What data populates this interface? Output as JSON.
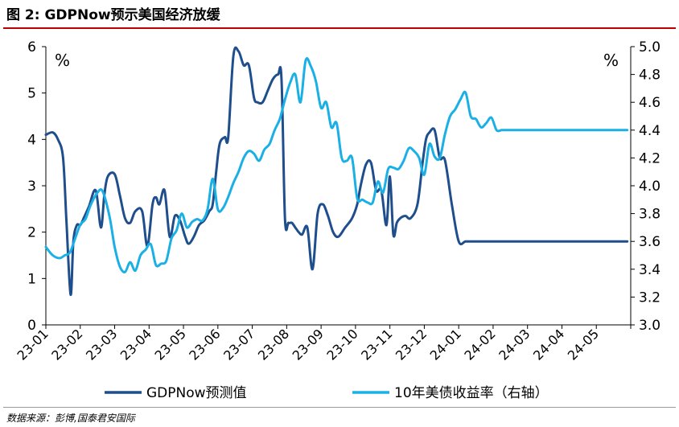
{
  "title": "图 2:  GDPNow预示美国经济放缓",
  "source": "数据来源：彭博,国泰君安国际",
  "chart_data": {
    "type": "line",
    "left_axis": {
      "ticks": [
        0,
        1,
        2,
        3,
        4,
        5,
        6
      ],
      "min": 0,
      "max": 6,
      "unit": "%"
    },
    "right_axis": {
      "ticks": [
        3.0,
        3.2,
        3.4,
        3.6,
        3.8,
        4.0,
        4.2,
        4.4,
        4.6,
        4.8,
        5.0
      ],
      "min": 3.0,
      "max": 5.0,
      "unit": "%"
    },
    "x_labels": [
      "23-01",
      "23-02",
      "23-03",
      "23-04",
      "23-05",
      "23-06",
      "23-07",
      "23-08",
      "23-09",
      "23-10",
      "23-11",
      "23-12",
      "24-01",
      "24-02",
      "24-03",
      "24-04",
      "24-05"
    ],
    "grid": false,
    "legend_position": "bottom",
    "series": [
      {
        "name": "GDPNow预测值",
        "axis": "left",
        "color": "#1f4e8c",
        "x": [
          0.0,
          0.2,
          0.35,
          0.5,
          0.6,
          0.72,
          0.8,
          0.9,
          1.0,
          1.1,
          1.25,
          1.45,
          1.6,
          1.7,
          1.8,
          2.0,
          2.15,
          2.3,
          2.45,
          2.6,
          2.8,
          2.95,
          3.1,
          3.2,
          3.3,
          3.45,
          3.6,
          3.75,
          3.9,
          4.05,
          4.15,
          4.3,
          4.45,
          4.6,
          4.75,
          4.85,
          4.95,
          5.05,
          5.2,
          5.3,
          5.45,
          5.6,
          5.75,
          5.9,
          6.05,
          6.15,
          6.3,
          6.45,
          6.6,
          6.75,
          6.85,
          6.95,
          7.05,
          7.15,
          7.25,
          7.35,
          7.45,
          7.6,
          7.75,
          7.9,
          8.05,
          8.2,
          8.35,
          8.5,
          8.7,
          8.9,
          9.05,
          9.15,
          9.3,
          9.45,
          9.6,
          9.75,
          9.9,
          10.0,
          10.1,
          10.2,
          10.3,
          10.45,
          10.6,
          10.8,
          10.95,
          11.05,
          11.15,
          11.3,
          11.45,
          11.6,
          11.8,
          12.0,
          12.2,
          12.4,
          12.6,
          12.75,
          12.9,
          13.05,
          13.2,
          13.3,
          13.45,
          13.6,
          13.75,
          13.9,
          14.05,
          14.15,
          14.3,
          14.45,
          14.6,
          14.75,
          14.95,
          15.15,
          15.35,
          15.5,
          15.6,
          15.75,
          15.9,
          16.05,
          16.2,
          16.35,
          16.5,
          16.65,
          16.8,
          16.9
        ],
        "values": [
          4.1,
          4.15,
          4.0,
          3.6,
          2.2,
          0.65,
          1.8,
          2.15,
          2.15,
          2.3,
          2.55,
          2.9,
          2.1,
          2.8,
          3.2,
          3.25,
          2.8,
          2.3,
          2.2,
          2.45,
          2.45,
          1.7,
          2.6,
          2.75,
          2.6,
          2.9,
          1.9,
          2.35,
          2.25,
          1.9,
          1.75,
          1.9,
          2.15,
          2.25,
          2.45,
          2.6,
          3.3,
          3.9,
          4.05,
          4.05,
          5.8,
          5.9,
          5.6,
          5.6,
          4.9,
          4.8,
          4.8,
          5.05,
          5.3,
          5.4,
          5.3,
          2.3,
          2.2,
          2.2,
          2.1,
          2.0,
          1.95,
          2.1,
          1.2,
          2.4,
          2.6,
          2.35,
          2.0,
          1.9,
          2.1,
          2.3,
          2.6,
          3.0,
          3.45,
          3.5,
          2.9,
          2.9,
          2.15,
          3.2,
          1.95,
          2.2,
          2.3,
          2.35,
          2.3,
          2.6,
          3.5,
          4.0,
          4.15,
          4.2,
          3.6,
          3.55,
          2.6,
          1.8,
          1.8,
          1.8,
          1.8,
          1.8,
          1.8,
          1.8,
          1.8,
          1.8,
          1.8,
          1.8,
          1.8,
          1.8,
          1.8,
          1.8,
          1.8,
          1.8,
          1.8,
          1.8,
          1.8,
          1.8,
          1.8,
          1.8,
          1.8,
          1.8,
          1.8,
          1.8,
          1.8,
          1.8,
          1.8,
          1.8,
          1.8,
          1.8
        ]
      },
      {
        "name": "10年美债收益率（右轴）",
        "axis": "right",
        "color": "#1ab0e6",
        "x": [
          0.0,
          0.2,
          0.4,
          0.55,
          0.7,
          0.85,
          1.0,
          1.15,
          1.3,
          1.5,
          1.65,
          1.85,
          2.0,
          2.15,
          2.3,
          2.45,
          2.6,
          2.75,
          2.9,
          3.05,
          3.2,
          3.35,
          3.5,
          3.65,
          3.8,
          3.95,
          4.1,
          4.25,
          4.4,
          4.55,
          4.7,
          4.85,
          5.0,
          5.15,
          5.3,
          5.45,
          5.6,
          5.75,
          5.9,
          6.05,
          6.2,
          6.35,
          6.5,
          6.65,
          6.8,
          6.95,
          7.1,
          7.25,
          7.4,
          7.55,
          7.7,
          7.85,
          8.0,
          8.15,
          8.3,
          8.45,
          8.6,
          8.75,
          8.9,
          9.05,
          9.2,
          9.35,
          9.5,
          9.65,
          9.8,
          9.95,
          10.1,
          10.25,
          10.4,
          10.55,
          10.7,
          10.85,
          11.0,
          11.15,
          11.3,
          11.45,
          11.6,
          11.75,
          11.9,
          12.05,
          12.2,
          12.35,
          12.5,
          12.65,
          12.8,
          12.95,
          13.1,
          13.25,
          13.4,
          13.55,
          13.7,
          13.85,
          14.0,
          14.15,
          14.3,
          14.45,
          14.6,
          14.75,
          14.9,
          15.05,
          15.2,
          15.35,
          15.5,
          15.65,
          15.8,
          15.95,
          16.1,
          16.25,
          16.4,
          16.55,
          16.7,
          16.9
        ],
        "values": [
          3.56,
          3.5,
          3.48,
          3.5,
          3.52,
          3.62,
          3.72,
          3.76,
          3.86,
          3.95,
          3.96,
          3.78,
          3.56,
          3.42,
          3.38,
          3.45,
          3.39,
          3.5,
          3.54,
          3.58,
          3.43,
          3.44,
          3.46,
          3.62,
          3.68,
          3.8,
          3.7,
          3.74,
          3.76,
          3.75,
          3.83,
          4.05,
          3.83,
          3.84,
          3.92,
          4.02,
          4.1,
          4.2,
          4.25,
          4.23,
          4.18,
          4.26,
          4.3,
          4.4,
          4.48,
          4.62,
          4.74,
          4.8,
          4.6,
          4.9,
          4.86,
          4.75,
          4.56,
          4.6,
          4.42,
          4.45,
          4.2,
          4.18,
          4.2,
          3.91,
          3.9,
          3.88,
          3.88,
          4.03,
          3.95,
          4.12,
          4.13,
          4.12,
          4.18,
          4.27,
          4.25,
          4.2,
          4.08,
          4.3,
          4.21,
          4.2,
          4.37,
          4.5,
          4.55,
          4.62,
          4.67,
          4.5,
          4.48,
          4.42,
          4.45,
          4.49,
          4.4,
          4.4,
          4.4,
          4.4,
          4.4,
          4.4,
          4.4,
          4.4,
          4.4,
          4.4,
          4.4,
          4.4,
          4.4,
          4.4,
          4.4,
          4.4,
          4.4,
          4.4,
          4.4,
          4.4,
          4.4,
          4.4,
          4.4,
          4.4,
          4.4,
          4.4
        ]
      }
    ]
  }
}
